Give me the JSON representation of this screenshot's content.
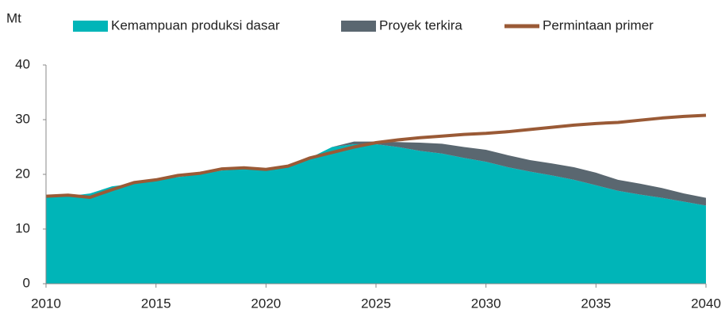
{
  "chart_data": {
    "type": "area-line",
    "y_label": "Mt",
    "x": [
      2010,
      2011,
      2012,
      2013,
      2014,
      2015,
      2016,
      2017,
      2018,
      2019,
      2020,
      2021,
      2022,
      2023,
      2024,
      2025,
      2026,
      2027,
      2028,
      2029,
      2030,
      2031,
      2032,
      2033,
      2034,
      2035,
      2036,
      2037,
      2038,
      2039,
      2040
    ],
    "series": [
      {
        "name": "Kemampuan produksi dasar",
        "color": "#00b5b8",
        "kind": "stacked-area",
        "values": [
          15.8,
          16.0,
          16.5,
          17.8,
          18.3,
          19.0,
          19.5,
          20.0,
          20.7,
          21.0,
          20.8,
          21.3,
          23.0,
          25.0,
          25.5,
          25.5,
          25.0,
          24.3,
          23.8,
          23.0,
          22.3,
          21.3,
          20.5,
          19.8,
          19.0,
          18.0,
          17.0,
          16.3,
          15.7,
          15.0,
          14.3
        ]
      },
      {
        "name": "Proyek terkira",
        "color": "#5a6770",
        "kind": "stacked-area",
        "values": [
          0,
          0,
          0,
          0,
          0,
          0,
          0,
          0,
          0,
          0,
          0,
          0,
          0,
          0,
          0.5,
          0.5,
          0.9,
          1.5,
          1.8,
          2.0,
          2.2,
          2.2,
          2.1,
          2.2,
          2.3,
          2.3,
          2.0,
          2.0,
          1.8,
          1.5,
          1.4
        ]
      },
      {
        "name": "Permintaan primer",
        "color": "#9a5a36",
        "kind": "line",
        "values": [
          16.0,
          16.2,
          15.8,
          17.2,
          18.5,
          19.0,
          19.8,
          20.2,
          21.0,
          21.2,
          20.9,
          21.5,
          23.0,
          24.0,
          25.0,
          25.8,
          26.3,
          26.7,
          27.0,
          27.3,
          27.5,
          27.8,
          28.2,
          28.6,
          29.0,
          29.3,
          29.5,
          29.9,
          30.3,
          30.6,
          30.8
        ]
      }
    ],
    "xlim": [
      2010,
      2040
    ],
    "xticks": [
      2010,
      2015,
      2020,
      2025,
      2030,
      2035,
      2040
    ],
    "ylim": [
      0,
      40
    ],
    "yticks": [
      0,
      10,
      20,
      30,
      40
    ],
    "legend": "top"
  }
}
